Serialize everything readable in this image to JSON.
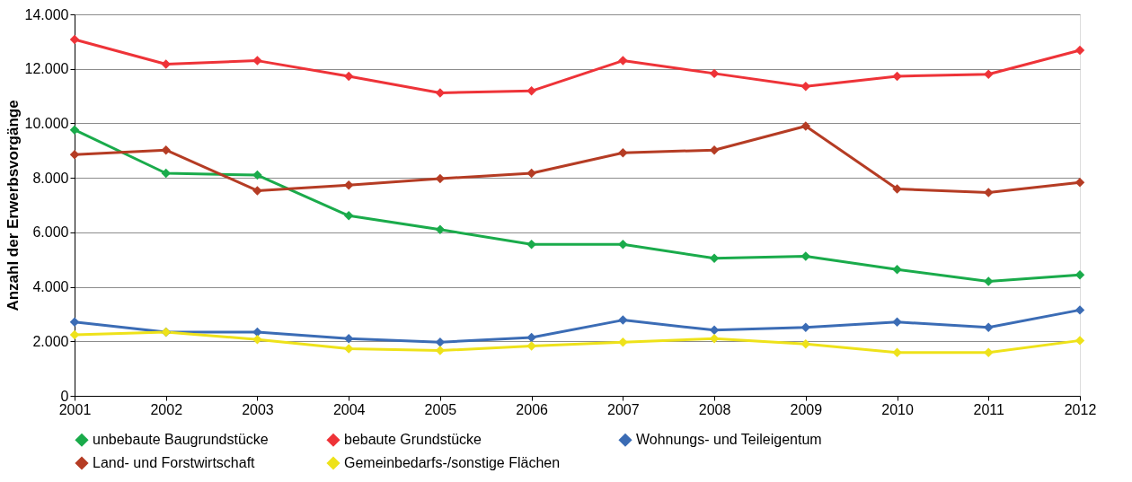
{
  "chart_data": {
    "type": "line",
    "ylabel": "Anzahl der Erwerbsvorgänge",
    "x": [
      2001,
      2002,
      2003,
      2004,
      2005,
      2006,
      2007,
      2008,
      2009,
      2010,
      2011,
      2012
    ],
    "xlim": [
      2001,
      2012
    ],
    "xticks": [
      2001,
      2002,
      2003,
      2004,
      2005,
      2006,
      2007,
      2008,
      2009,
      2010,
      2011,
      2012
    ],
    "ylim": [
      0,
      14000
    ],
    "yticks": [
      0,
      {
        "value": 2000,
        "label": "2.000"
      },
      {
        "value": 4000,
        "label": "4.000"
      },
      {
        "value": 6000,
        "label": "6.000"
      },
      {
        "value": 8000,
        "label": "8.000"
      },
      {
        "value": 10000,
        "label": "10.000"
      },
      {
        "value": 12000,
        "label": "12.000"
      },
      {
        "value": 14000,
        "label": "14.000"
      }
    ],
    "grid": "y",
    "legend": "bottom",
    "marker": "diamond",
    "line_style": "solid",
    "series": [
      {
        "name": "unbebaute Baugrundstücke",
        "color": "#1aab4b",
        "values": [
          9760,
          8170,
          8100,
          6610,
          6100,
          5560,
          5560,
          5050,
          5120,
          4640,
          4200,
          4440
        ]
      },
      {
        "name": "bebaute Grundstücke",
        "color": "#ee3338",
        "values": [
          13080,
          12170,
          12300,
          11730,
          11120,
          11190,
          12300,
          11830,
          11360,
          11730,
          11800,
          12680
        ]
      },
      {
        "name": "Wohnungs- und Teileigentum",
        "color": "#3b6cb5",
        "values": [
          2710,
          2340,
          2340,
          2100,
          1970,
          2140,
          2780,
          2410,
          2510,
          2710,
          2510,
          3150
        ]
      },
      {
        "name": "Land- und Forstwirtschaft",
        "color": "#b53c24",
        "values": [
          8850,
          9020,
          7530,
          7730,
          7970,
          8170,
          8920,
          9020,
          9900,
          7590,
          7460,
          7830
        ]
      },
      {
        "name": "Gemeinbedarfs-/sonstige Flächen",
        "color": "#eee21a",
        "values": [
          2240,
          2340,
          2070,
          1730,
          1660,
          1830,
          1970,
          2100,
          1900,
          1590,
          1590,
          2030
        ]
      }
    ]
  }
}
